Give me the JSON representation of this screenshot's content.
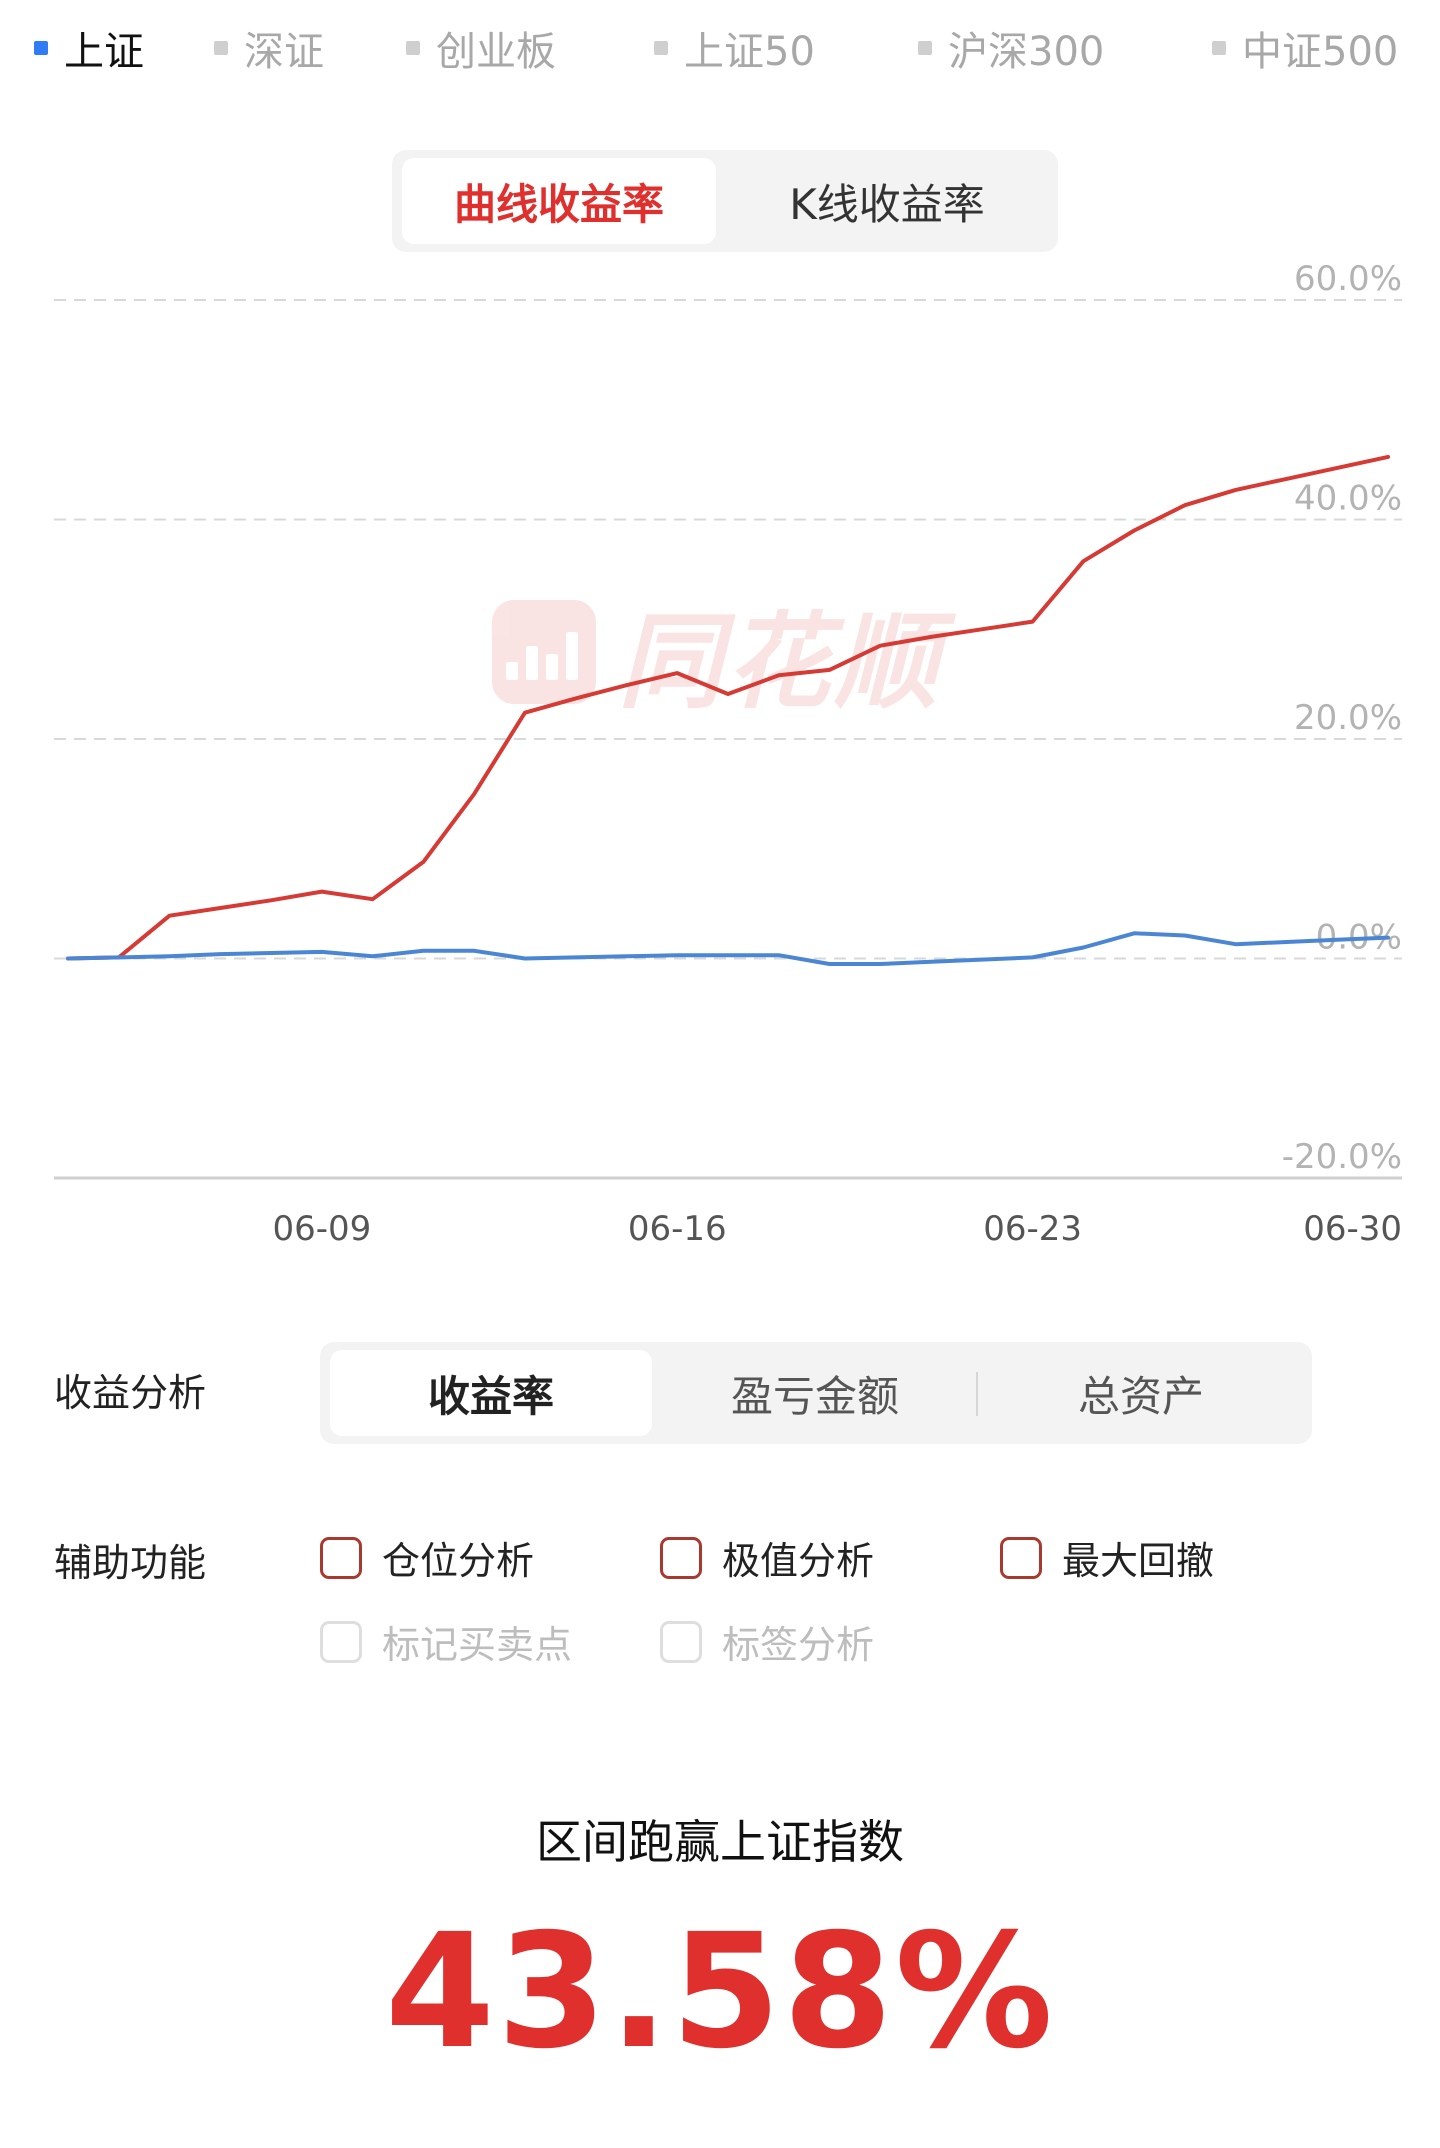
{
  "index_tabs": [
    {
      "label": "上证",
      "active": true
    },
    {
      "label": "深证",
      "active": false
    },
    {
      "label": "创业板",
      "active": false
    },
    {
      "label": "上证50",
      "active": false
    },
    {
      "label": "沪深300",
      "active": false
    },
    {
      "label": "中证500",
      "active": false
    }
  ],
  "chart_toggle": {
    "curve_label": "曲线收益率",
    "kline_label": "K线收益率"
  },
  "watermark": {
    "brand": "同花顺"
  },
  "chart_data": {
    "type": "line",
    "x_ticks": [
      "06-09",
      "06-16",
      "06-23",
      "06-30"
    ],
    "y_ticks": [
      "60.0%",
      "40.0%",
      "20.0%",
      "0.0%",
      "-20.0%"
    ],
    "ylim": [
      -20,
      60
    ],
    "series": [
      {
        "color": "#d63a34",
        "points": [
          [
            0,
            0.0
          ],
          [
            1,
            0.1
          ],
          [
            2,
            3.9
          ],
          [
            3,
            4.6
          ],
          [
            4,
            5.3
          ],
          [
            5,
            6.1
          ],
          [
            6,
            5.4
          ],
          [
            7,
            8.8
          ],
          [
            8,
            15.0
          ],
          [
            9,
            22.4
          ],
          [
            10,
            23.7
          ],
          [
            11,
            24.9
          ],
          [
            12,
            26.0
          ],
          [
            13,
            24.1
          ],
          [
            14,
            25.8
          ],
          [
            15,
            26.3
          ],
          [
            16,
            28.5
          ],
          [
            17,
            29.3
          ],
          [
            18,
            30.0
          ],
          [
            19,
            30.7
          ],
          [
            20,
            36.2
          ],
          [
            21,
            39.0
          ],
          [
            22,
            41.3
          ],
          [
            23,
            42.7
          ],
          [
            24,
            43.7
          ],
          [
            25,
            44.7
          ],
          [
            26,
            45.7
          ]
        ]
      },
      {
        "color": "#4a86d4",
        "points": [
          [
            0,
            0.0
          ],
          [
            1,
            0.1
          ],
          [
            2,
            0.2
          ],
          [
            3,
            0.4
          ],
          [
            4,
            0.5
          ],
          [
            5,
            0.6
          ],
          [
            6,
            0.2
          ],
          [
            7,
            0.7
          ],
          [
            8,
            0.7
          ],
          [
            9,
            0.0
          ],
          [
            10,
            0.1
          ],
          [
            11,
            0.2
          ],
          [
            12,
            0.3
          ],
          [
            13,
            0.3
          ],
          [
            14,
            0.3
          ],
          [
            15,
            -0.5
          ],
          [
            16,
            -0.5
          ],
          [
            17,
            -0.3
          ],
          [
            18,
            -0.1
          ],
          [
            19,
            0.1
          ],
          [
            20,
            1.0
          ],
          [
            21,
            2.3
          ],
          [
            22,
            2.1
          ],
          [
            23,
            1.3
          ],
          [
            24,
            1.5
          ],
          [
            25,
            1.7
          ],
          [
            26,
            1.9
          ]
        ]
      }
    ]
  },
  "analysis": {
    "label": "收益分析",
    "options": [
      {
        "label": "收益率",
        "active": true
      },
      {
        "label": "盈亏金额",
        "active": false
      },
      {
        "label": "总资产",
        "active": false
      }
    ]
  },
  "auxiliary": {
    "label": "辅助功能",
    "options": [
      {
        "label": "仓位分析",
        "enabled": true
      },
      {
        "label": "极值分析",
        "enabled": true
      },
      {
        "label": "最大回撤",
        "enabled": true
      },
      {
        "label": "标记买卖点",
        "enabled": false
      },
      {
        "label": "标签分析",
        "enabled": false
      }
    ]
  },
  "summary": {
    "label": "区间跑赢上证指数",
    "value": "43.58%"
  }
}
